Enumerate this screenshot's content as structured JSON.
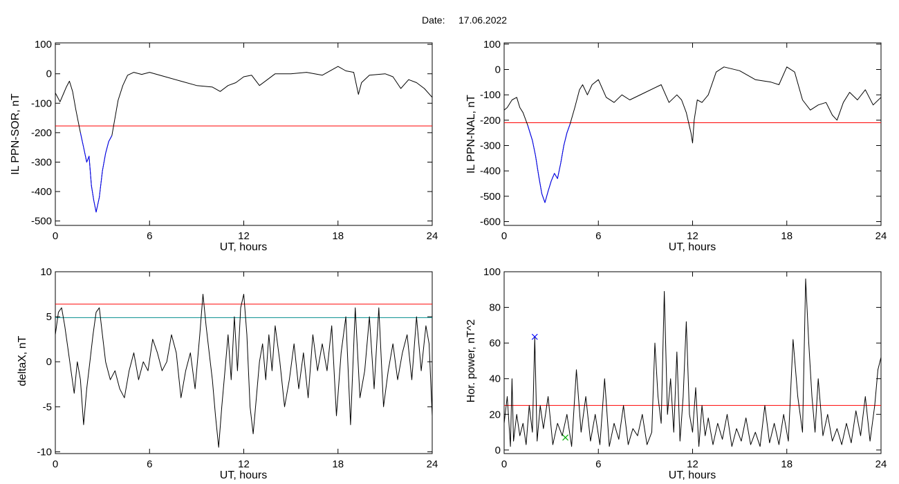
{
  "header": {
    "date_label": "Date:",
    "date_value": "17.06.2022"
  },
  "chart_data": [
    {
      "type": "line",
      "xlabel": "UT, hours",
      "ylabel": "IL PPN-SOR, nT",
      "xlim": [
        0,
        24
      ],
      "ylim": [
        -515,
        105
      ],
      "xticks": [
        0,
        6,
        12,
        18,
        24
      ],
      "yticks": [
        100,
        0,
        -100,
        -200,
        -300,
        -400,
        -500
      ],
      "grid": false,
      "threshold": {
        "value": -177,
        "color": "#ff0000"
      },
      "series": [
        {
          "color": "#000000",
          "x": [
            0,
            0.15,
            0.3,
            0.5,
            0.7,
            0.9,
            1.1,
            1.3,
            1.6,
            1.8,
            2.0,
            2.15,
            2.3,
            2.45,
            2.6,
            2.8,
            3.0,
            3.2,
            3.4,
            3.6,
            3.8,
            4.0,
            4.3,
            4.6,
            5.0,
            5.5,
            6.0,
            7.0,
            8.0,
            9.0,
            10.0,
            10.5,
            11.0,
            11.5,
            12.0,
            12.5,
            13.0,
            13.5,
            14.0,
            15.0,
            16.0,
            17.0,
            18.0,
            18.5,
            19.0,
            19.3,
            19.5,
            20.0,
            21.0,
            21.5,
            22.0,
            22.5,
            23.0,
            23.5,
            24.0
          ],
          "y": [
            -65,
            -80,
            -95,
            -70,
            -45,
            -25,
            -60,
            -120,
            -200,
            -250,
            -300,
            -280,
            -380,
            -430,
            -470,
            -420,
            -330,
            -270,
            -230,
            -210,
            -150,
            -90,
            -40,
            -5,
            5,
            -2,
            5,
            -10,
            -25,
            -40,
            -45,
            -60,
            -40,
            -30,
            -10,
            -5,
            -40,
            -20,
            0,
            0,
            5,
            -5,
            25,
            10,
            5,
            -70,
            -30,
            -5,
            0,
            -10,
            -50,
            -20,
            -30,
            -50,
            -80
          ]
        },
        {
          "color": "#0000ff",
          "x": [
            1.6,
            1.8,
            2.0,
            2.15,
            2.3,
            2.45,
            2.6,
            2.8,
            3.0,
            3.2,
            3.4,
            3.6
          ],
          "y": [
            -200,
            -250,
            -300,
            -280,
            -380,
            -430,
            -470,
            -420,
            -330,
            -270,
            -230,
            -210
          ]
        }
      ]
    },
    {
      "type": "line",
      "xlabel": "UT, hours",
      "ylabel": "IL PPN-NAL, nT",
      "xlim": [
        0,
        24
      ],
      "ylim": [
        -615,
        105
      ],
      "xticks": [
        0,
        6,
        12,
        18,
        24
      ],
      "yticks": [
        100,
        0,
        -100,
        -200,
        -300,
        -400,
        -500,
        -600
      ],
      "grid": false,
      "threshold": {
        "value": -210,
        "color": "#ff0000"
      },
      "series": [
        {
          "color": "#000000",
          "x": [
            0,
            0.2,
            0.5,
            0.8,
            1.0,
            1.2,
            1.5,
            1.8,
            2.0,
            2.2,
            2.4,
            2.6,
            2.8,
            3.0,
            3.2,
            3.4,
            3.6,
            3.8,
            4.0,
            4.2,
            4.5,
            4.8,
            5.0,
            5.3,
            5.6,
            6.0,
            6.5,
            7.0,
            7.5,
            8.0,
            9.0,
            10.0,
            10.5,
            11.0,
            11.3,
            11.6,
            11.9,
            12.0,
            12.1,
            12.3,
            12.6,
            13.0,
            13.5,
            14.0,
            15.0,
            16.0,
            17.0,
            17.5,
            18.0,
            18.5,
            19.0,
            19.5,
            20.0,
            20.5,
            20.9,
            21.2,
            21.6,
            22.0,
            22.5,
            23.0,
            23.5,
            24.0
          ],
          "y": [
            -160,
            -150,
            -120,
            -110,
            -150,
            -170,
            -220,
            -280,
            -340,
            -420,
            -490,
            -525,
            -480,
            -440,
            -410,
            -430,
            -370,
            -300,
            -250,
            -215,
            -150,
            -80,
            -60,
            -100,
            -60,
            -40,
            -110,
            -130,
            -100,
            -120,
            -90,
            -60,
            -130,
            -100,
            -120,
            -170,
            -250,
            -290,
            -200,
            -120,
            -130,
            -100,
            -10,
            10,
            -5,
            -40,
            -50,
            -60,
            10,
            -10,
            -120,
            -160,
            -140,
            -130,
            -180,
            -200,
            -130,
            -90,
            -120,
            -80,
            -140,
            -110
          ]
        },
        {
          "color": "#0000ff",
          "x": [
            1.5,
            1.8,
            2.0,
            2.2,
            2.4,
            2.6,
            2.8,
            3.0,
            3.2,
            3.4,
            3.6,
            3.8,
            4.0,
            4.2
          ],
          "y": [
            -220,
            -280,
            -340,
            -420,
            -490,
            -525,
            -480,
            -440,
            -410,
            -430,
            -370,
            -300,
            -250,
            -215
          ]
        }
      ]
    },
    {
      "type": "line",
      "xlabel": "UT, hours",
      "ylabel": "deltaX, nT",
      "xlim": [
        0,
        24
      ],
      "ylim": [
        -10.2,
        10
      ],
      "xticks": [
        0,
        6,
        12,
        18,
        24
      ],
      "yticks": [
        10,
        5,
        0,
        -5,
        -10
      ],
      "grid": false,
      "thresholds": [
        {
          "value": 6.4,
          "color": "#ff0000"
        },
        {
          "value": 4.9,
          "color": "#008b8b"
        }
      ],
      "series": [
        {
          "color": "#000000",
          "x": [
            0,
            0.2,
            0.4,
            0.6,
            0.8,
            1.0,
            1.2,
            1.4,
            1.6,
            1.8,
            2.0,
            2.2,
            2.4,
            2.6,
            2.8,
            3.0,
            3.2,
            3.5,
            3.8,
            4.1,
            4.4,
            4.7,
            5.0,
            5.3,
            5.6,
            5.9,
            6.2,
            6.5,
            6.8,
            7.1,
            7.4,
            7.7,
            8.0,
            8.3,
            8.6,
            8.9,
            9.2,
            9.4,
            9.6,
            9.8,
            10.0,
            10.2,
            10.4,
            10.6,
            10.8,
            11.0,
            11.2,
            11.4,
            11.6,
            11.8,
            12.0,
            12.2,
            12.4,
            12.6,
            12.8,
            13.0,
            13.2,
            13.4,
            13.6,
            13.8,
            14.0,
            14.3,
            14.6,
            14.9,
            15.2,
            15.5,
            15.8,
            16.1,
            16.4,
            16.7,
            17.0,
            17.3,
            17.6,
            17.9,
            18.2,
            18.5,
            18.8,
            19.1,
            19.4,
            19.7,
            20.0,
            20.3,
            20.6,
            20.9,
            21.2,
            21.5,
            21.8,
            22.1,
            22.4,
            22.7,
            23.0,
            23.3,
            23.6,
            23.8,
            24.0
          ],
          "y": [
            3,
            5.5,
            6,
            4,
            1.5,
            -1,
            -3.5,
            0,
            -2,
            -7,
            -3,
            0,
            3,
            5.5,
            6,
            3,
            0,
            -2,
            -1,
            -3,
            -4,
            -1,
            1,
            -2,
            0,
            -1,
            2.5,
            1,
            -1,
            0,
            3,
            1,
            -4,
            -1,
            1,
            -3,
            3,
            7.5,
            4,
            1,
            -2,
            -6,
            -9.5,
            -5,
            -1,
            3,
            -2,
            5,
            -1,
            6,
            7.5,
            3,
            -5,
            -8,
            -4,
            0,
            2,
            -2,
            3,
            -1,
            4,
            0,
            -5,
            -2,
            2,
            -3,
            1,
            -4,
            3,
            -1,
            2,
            -1,
            4,
            -6,
            1,
            5,
            -7,
            6,
            -4,
            -1,
            5,
            -3,
            6,
            -5,
            -1,
            2,
            -2,
            1,
            3,
            -2,
            5,
            -1,
            4,
            2,
            -6
          ]
        }
      ]
    },
    {
      "type": "line",
      "xlabel": "UT, hours",
      "ylabel": "Hor. power, nT^2",
      "xlim": [
        0,
        24
      ],
      "ylim": [
        -2,
        100
      ],
      "xticks": [
        0,
        6,
        12,
        18,
        24
      ],
      "yticks": [
        0,
        20,
        40,
        60,
        80,
        100
      ],
      "grid": false,
      "threshold": {
        "value": 25,
        "color": "#ff0000"
      },
      "markers": [
        {
          "x": 1.95,
          "y": 63.5,
          "symbol": "x",
          "color": "#0000ff"
        },
        {
          "x": 3.9,
          "y": 7,
          "symbol": "x",
          "color": "#00aa00"
        }
      ],
      "series": [
        {
          "color": "#000000",
          "x": [
            0,
            0.2,
            0.4,
            0.5,
            0.6,
            0.8,
            1.0,
            1.2,
            1.4,
            1.6,
            1.8,
            1.95,
            2.1,
            2.3,
            2.5,
            2.8,
            3.1,
            3.4,
            3.7,
            4.0,
            4.3,
            4.6,
            4.9,
            5.2,
            5.5,
            5.8,
            6.1,
            6.4,
            6.7,
            7.0,
            7.3,
            7.6,
            7.9,
            8.2,
            8.5,
            8.8,
            9.1,
            9.4,
            9.6,
            9.8,
            10.0,
            10.2,
            10.4,
            10.6,
            10.8,
            11.0,
            11.2,
            11.4,
            11.6,
            11.8,
            12.0,
            12.2,
            12.4,
            12.6,
            12.8,
            13.0,
            13.3,
            13.6,
            13.9,
            14.2,
            14.5,
            14.8,
            15.1,
            15.4,
            15.7,
            16.0,
            16.3,
            16.6,
            16.9,
            17.2,
            17.5,
            17.8,
            18.1,
            18.4,
            18.7,
            19.0,
            19.2,
            19.4,
            19.6,
            19.8,
            20.0,
            20.3,
            20.6,
            20.9,
            21.2,
            21.5,
            21.8,
            22.1,
            22.4,
            22.7,
            23.0,
            23.3,
            23.6,
            23.8,
            24.0
          ],
          "y": [
            15,
            30,
            2,
            40,
            5,
            20,
            8,
            15,
            3,
            25,
            10,
            63,
            5,
            25,
            12,
            30,
            3,
            15,
            8,
            20,
            2,
            45,
            10,
            30,
            5,
            20,
            3,
            40,
            2,
            15,
            6,
            25,
            3,
            12,
            8,
            20,
            3,
            10,
            60,
            30,
            15,
            89,
            20,
            40,
            10,
            55,
            5,
            30,
            72,
            20,
            10,
            35,
            2,
            25,
            8,
            18,
            3,
            15,
            6,
            20,
            2,
            12,
            5,
            18,
            3,
            10,
            2,
            25,
            4,
            15,
            3,
            20,
            5,
            62,
            30,
            10,
            96,
            60,
            30,
            10,
            40,
            8,
            20,
            5,
            12,
            3,
            15,
            4,
            22,
            8,
            30,
            5,
            25,
            45,
            52
          ]
        }
      ]
    }
  ]
}
